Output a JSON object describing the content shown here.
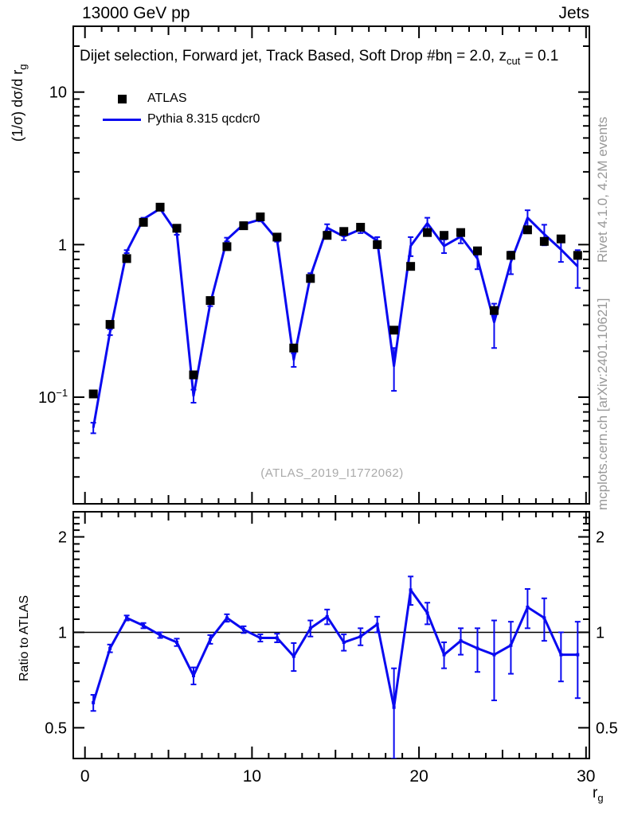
{
  "header": {
    "beam": "13000 GeV pp",
    "group": "Jets"
  },
  "title": {
    "prefix": "Dijet selection, Forward jet, Track Based, Soft Drop #bη = 2.0, z",
    "sub": "cut",
    "suffix": " = 0.1"
  },
  "axes": {
    "y_label": {
      "main": "(1/σ) dσ/d r",
      "sub": "g"
    },
    "x_label": {
      "main": "r",
      "sub": "g"
    },
    "ratio_label": "Ratio to ATLAS"
  },
  "legend": [
    {
      "marker": "square",
      "color": "#000000",
      "label": "ATLAS"
    },
    {
      "marker": "line",
      "color": "#0a0af0",
      "label": "Pythia 8.315 qcdcr0"
    }
  ],
  "watermark": "(ATLAS_2019_I1772062)",
  "side_notes": {
    "top": "Rivet 4.1.0,  4.2M events",
    "bottom": "mcplots.cern.ch [arXiv:2401.10621]"
  },
  "colors": {
    "mc_blue": "#0a0af0",
    "data_black": "#000000",
    "gray_note": "#999999",
    "watermark_gray": "#aaaaaa"
  },
  "chart_data": {
    "type": "line",
    "title": "Dijet selection, Forward jet, Track Based, Soft Drop #bη = 2.0, z_cut = 0.1",
    "xlabel": "r_g",
    "ylabel": "(1/σ) dσ/d r_g",
    "x": [
      0.5,
      1.5,
      2.5,
      3.5,
      4.5,
      5.5,
      6.5,
      7.5,
      8.5,
      9.5,
      10.5,
      11.5,
      12.5,
      13.5,
      14.5,
      15.5,
      16.5,
      17.5,
      18.5,
      19.5,
      20.5,
      21.5,
      22.5,
      23.5,
      24.5,
      25.5,
      26.5,
      27.5,
      28.5,
      29.5
    ],
    "series": [
      {
        "name": "ATLAS",
        "style": "black-squares",
        "values": [
          0.105,
          0.3,
          0.81,
          1.4,
          1.76,
          1.28,
          0.14,
          0.43,
          0.97,
          1.33,
          1.52,
          1.12,
          0.21,
          0.6,
          1.15,
          1.22,
          1.3,
          1.0,
          0.275,
          0.72,
          1.2,
          1.15,
          1.2,
          0.91,
          0.37,
          0.85,
          1.25,
          1.05,
          1.09,
          0.85
        ]
      },
      {
        "name": "Pythia 8.315 qcdcr0",
        "style": "blue-line-errorbars",
        "values": [
          0.063,
          0.267,
          0.9,
          1.47,
          1.72,
          1.19,
          0.102,
          0.41,
          1.08,
          1.36,
          1.46,
          1.08,
          0.176,
          0.62,
          1.29,
          1.13,
          1.26,
          1.06,
          0.16,
          0.98,
          1.38,
          0.98,
          1.13,
          0.81,
          0.31,
          0.77,
          1.5,
          1.17,
          0.93,
          0.72
        ],
        "errors": [
          0.005,
          0.012,
          0.02,
          0.03,
          0.035,
          0.03,
          0.01,
          0.015,
          0.03,
          0.04,
          0.04,
          0.035,
          0.018,
          0.03,
          0.07,
          0.06,
          0.07,
          0.06,
          0.05,
          0.14,
          0.12,
          0.1,
          0.11,
          0.12,
          0.1,
          0.13,
          0.18,
          0.18,
          0.16,
          0.2
        ]
      }
    ],
    "ratio": {
      "name": "Ratio to ATLAS",
      "reference_line": 1,
      "values": [
        0.6,
        0.89,
        1.11,
        1.05,
        0.98,
        0.93,
        0.73,
        0.95,
        1.11,
        1.02,
        0.96,
        0.96,
        0.84,
        1.03,
        1.12,
        0.93,
        0.97,
        1.06,
        0.58,
        1.36,
        1.15,
        0.85,
        0.94,
        0.89,
        0.85,
        0.91,
        1.2,
        1.11,
        0.85,
        0.85
      ],
      "errors": [
        0.035,
        0.025,
        0.02,
        0.02,
        0.02,
        0.025,
        0.045,
        0.03,
        0.03,
        0.025,
        0.025,
        0.03,
        0.085,
        0.06,
        0.06,
        0.055,
        0.06,
        0.06,
        0.19,
        0.14,
        0.09,
        0.08,
        0.09,
        0.14,
        0.24,
        0.17,
        0.17,
        0.17,
        0.15,
        0.23
      ]
    },
    "main_axis": {
      "scale": "log",
      "range": [
        0.02,
        27
      ],
      "ticks": [
        {
          "v": 10,
          "t": "10"
        },
        {
          "v": 1,
          "t": "1"
        },
        {
          "v": 0.1,
          "t": "10",
          "e": "−1"
        }
      ]
    },
    "ratio_axis": {
      "scale": "log",
      "range": [
        0.4,
        2.4
      ],
      "ticks": [
        {
          "v": 2,
          "t": "2"
        },
        {
          "v": 1,
          "t": "1"
        },
        {
          "v": 0.5,
          "t": "0.5"
        }
      ]
    },
    "x_axis": {
      "range": [
        -0.7,
        30.2
      ],
      "ticks": [
        0,
        10,
        20,
        30
      ],
      "minor_step": 1,
      "medium_step": 5
    },
    "legend_position": "top-left",
    "grid": false
  }
}
